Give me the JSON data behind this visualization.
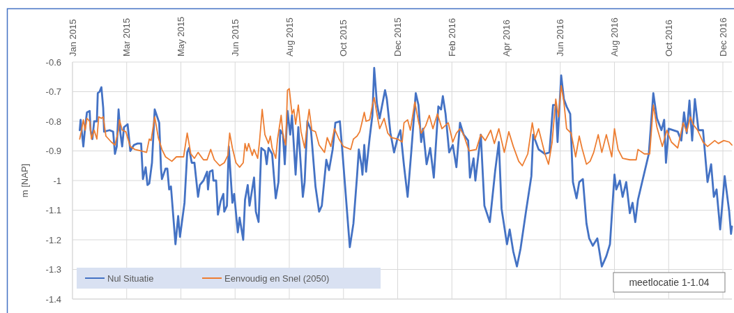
{
  "chart_data": {
    "type": "line",
    "ylabel": "m [NAP]",
    "xlim": [
      "2015-01-01",
      "2016-12-31"
    ],
    "ylim": [
      -1.4,
      -0.6
    ],
    "xticks": [
      {
        "value": "2015-01-01",
        "label": "Jan 2015"
      },
      {
        "value": "2015-03-02",
        "label": "Mar 2015"
      },
      {
        "value": "2015-05-01",
        "label": "May 2015"
      },
      {
        "value": "2015-06-30",
        "label": "Jun 2015"
      },
      {
        "value": "2015-08-29",
        "label": "Aug 2015"
      },
      {
        "value": "2015-10-28",
        "label": "Oct 2015"
      },
      {
        "value": "2015-12-27",
        "label": "Dec 2015"
      },
      {
        "value": "2016-02-25",
        "label": "Feb 2016"
      },
      {
        "value": "2016-04-25",
        "label": "Apr 2016"
      },
      {
        "value": "2016-06-24",
        "label": "Jun 2016"
      },
      {
        "value": "2016-08-23",
        "label": "Aug 2016"
      },
      {
        "value": "2016-10-22",
        "label": "Oct 2016"
      },
      {
        "value": "2016-12-21",
        "label": "Dec 2016"
      }
    ],
    "yticks": [
      -1.4,
      -1.3,
      -1.2,
      -1.1,
      -1,
      -0.9,
      -0.8,
      -0.7,
      -0.6
    ],
    "grid": true,
    "legend": "bottom left",
    "annotations": [
      "meetlocatie 1-1.04"
    ],
    "series": [
      {
        "name": "Nul Situatie",
        "color": "#4472c4",
        "x": [
          "2015-01-09",
          "2015-01-10",
          "2015-01-13",
          "2015-01-15",
          "2015-01-17",
          "2015-01-20",
          "2015-01-21",
          "2015-01-23",
          "2015-01-25",
          "2015-01-28",
          "2015-01-29",
          "2015-01-31",
          "2015-02-02",
          "2015-02-04",
          "2015-02-05",
          "2015-02-11",
          "2015-02-15",
          "2015-02-17",
          "2015-02-19",
          "2015-02-21",
          "2015-02-23",
          "2015-02-25",
          "2015-02-27",
          "2015-03-03",
          "2015-03-06",
          "2015-03-10",
          "2015-03-14",
          "2015-03-18",
          "2015-03-20",
          "2015-03-23",
          "2015-03-25",
          "2015-03-27",
          "2015-03-30",
          "2015-04-02",
          "2015-04-07",
          "2015-04-09",
          "2015-04-10",
          "2015-04-14",
          "2015-04-16",
          "2015-04-18",
          "2015-04-20",
          "2015-04-25",
          "2015-04-28",
          "2015-04-30",
          "2015-05-05",
          "2015-05-08",
          "2015-05-10",
          "2015-05-13",
          "2015-05-16",
          "2015-05-20",
          "2015-05-22",
          "2015-05-26",
          "2015-05-30",
          "2015-05-31",
          "2015-06-02",
          "2015-06-05",
          "2015-06-06",
          "2015-06-09",
          "2015-06-11",
          "2015-06-14",
          "2015-06-17",
          "2015-06-18",
          "2015-06-21",
          "2015-06-23",
          "2015-06-27",
          "2015-06-29",
          "2015-07-03",
          "2015-07-05",
          "2015-07-09",
          "2015-07-11",
          "2015-07-14",
          "2015-07-16",
          "2015-07-21",
          "2015-07-23",
          "2015-07-26",
          "2015-07-29",
          "2015-08-02",
          "2015-08-04",
          "2015-08-06",
          "2015-08-10",
          "2015-08-14",
          "2015-08-17",
          "2015-08-19",
          "2015-08-22",
          "2015-08-24",
          "2015-08-27",
          "2015-08-30",
          "2015-09-01",
          "2015-09-05",
          "2015-09-08",
          "2015-09-13",
          "2015-09-15",
          "2015-09-18",
          "2015-09-22",
          "2015-09-27",
          "2015-10-01",
          "2015-10-04",
          "2015-10-09",
          "2015-10-12",
          "2015-10-16",
          "2015-10-19",
          "2015-10-24",
          "2015-10-27",
          "2015-11-04",
          "2015-11-08",
          "2015-11-12",
          "2015-11-14",
          "2015-11-17",
          "2015-11-18",
          "2015-11-20",
          "2015-11-22",
          "2015-11-26",
          "2015-11-29",
          "2015-12-01",
          "2015-12-04",
          "2015-12-07",
          "2015-12-13",
          "2015-12-15",
          "2015-12-19",
          "2015-12-23",
          "2015-12-27",
          "2015-12-30",
          "2016-01-03",
          "2016-01-07",
          "2016-01-11",
          "2016-01-16",
          "2016-01-19",
          "2016-01-22",
          "2016-01-24",
          "2016-01-28",
          "2016-02-01",
          "2016-02-05",
          "2016-02-10",
          "2016-02-13",
          "2016-02-15",
          "2016-02-18",
          "2016-02-22",
          "2016-02-26",
          "2016-03-01",
          "2016-03-05",
          "2016-03-09",
          "2016-03-14",
          "2016-03-16",
          "2016-03-20",
          "2016-03-22",
          "2016-03-28",
          "2016-04-01",
          "2016-04-07",
          "2016-04-13",
          "2016-04-17",
          "2016-04-20",
          "2016-04-26",
          "2016-04-29",
          "2016-05-03",
          "2016-05-07",
          "2016-05-11",
          "2016-05-17",
          "2016-05-23",
          "2016-05-25",
          "2016-05-31",
          "2016-06-07",
          "2016-06-12",
          "2016-06-16",
          "2016-06-19",
          "2016-06-21",
          "2016-06-25",
          "2016-06-28",
          "2016-07-01",
          "2016-07-05",
          "2016-07-08",
          "2016-07-12",
          "2016-07-15",
          "2016-07-19",
          "2016-07-23",
          "2016-07-26",
          "2016-07-30",
          "2016-08-04",
          "2016-08-09",
          "2016-08-14",
          "2016-08-18",
          "2016-08-23",
          "2016-08-25",
          "2016-08-29",
          "2016-09-01",
          "2016-09-05",
          "2016-09-09",
          "2016-09-12",
          "2016-09-15",
          "2016-09-18",
          "2016-09-23",
          "2016-09-30",
          "2016-10-05",
          "2016-10-09",
          "2016-10-14",
          "2016-10-17",
          "2016-10-19",
          "2016-10-22",
          "2016-11-01",
          "2016-11-05",
          "2016-11-08",
          "2016-11-11",
          "2016-11-14",
          "2016-11-17",
          "2016-11-20",
          "2016-11-24",
          "2016-11-29",
          "2016-12-04",
          "2016-12-08",
          "2016-12-11",
          "2016-12-14",
          "2016-12-18",
          "2016-12-23",
          "2016-12-28",
          "2016-12-30",
          "2016-12-31"
        ],
        "values": [
          -0.83,
          -0.795,
          -0.885,
          -0.82,
          -0.77,
          -0.765,
          -0.83,
          -0.86,
          -0.8,
          -0.8,
          -0.705,
          -0.7,
          -0.685,
          -0.755,
          -0.835,
          -0.83,
          -0.835,
          -0.91,
          -0.885,
          -0.76,
          -0.84,
          -0.885,
          -0.82,
          -0.81,
          -0.9,
          -0.88,
          -0.875,
          -0.875,
          -0.995,
          -0.955,
          -1.015,
          -1.01,
          -0.94,
          -0.76,
          -0.805,
          -0.96,
          -0.995,
          -0.96,
          -0.96,
          -1.03,
          -1.02,
          -1.215,
          -1.12,
          -1.19,
          -1.075,
          -0.905,
          -0.89,
          -0.94,
          -0.94,
          -1.055,
          -1.015,
          -1,
          -0.97,
          -1.03,
          -0.97,
          -0.965,
          -1,
          -1,
          -1.115,
          -1.07,
          -1.045,
          -1.105,
          -1.085,
          -0.885,
          -1.075,
          -1.045,
          -1.175,
          -1.125,
          -1.2,
          -1.065,
          -1.015,
          -1.085,
          -0.99,
          -1.105,
          -1.14,
          -0.89,
          -0.9,
          -0.945,
          -0.89,
          -0.91,
          -1.06,
          -1.005,
          -0.83,
          -0.845,
          -0.945,
          -0.765,
          -0.845,
          -0.78,
          -0.98,
          -0.82,
          -1.055,
          -1.005,
          -0.8,
          -0.83,
          -1.02,
          -1.105,
          -1.085,
          -0.93,
          -0.965,
          -0.895,
          -0.805,
          -0.8,
          -0.91,
          -1.225,
          -1.145,
          -0.985,
          -0.895,
          -0.95,
          -0.98,
          -0.88,
          -0.97,
          -0.855,
          -0.78,
          -0.62,
          -0.74,
          -0.79,
          -0.695,
          -0.725,
          -0.84,
          -0.905,
          -0.855,
          -0.83,
          -0.95,
          -1.055,
          -0.905,
          -0.705,
          -0.745,
          -0.87,
          -0.825,
          -0.945,
          -0.89,
          -0.99,
          -0.75,
          -0.76,
          -0.715,
          -0.775,
          -0.905,
          -0.88,
          -0.955,
          -0.805,
          -0.845,
          -0.865,
          -0.99,
          -0.925,
          -1,
          -0.845,
          -1.085,
          -1.14,
          -0.965,
          -0.87,
          -1.095,
          -1.215,
          -1.165,
          -1.24,
          -1.29,
          -1.23,
          -1.105,
          -0.985,
          -0.845,
          -0.895,
          -0.91,
          -0.905,
          -0.745,
          -0.745,
          -0.87,
          -0.645,
          -0.725,
          -0.75,
          -0.775,
          -1.005,
          -1.06,
          -1.005,
          -0.995,
          -1.145,
          -1.195,
          -1.22,
          -1.195,
          -1.29,
          -1.255,
          -1.215,
          -0.98,
          -1.03,
          -1,
          -1.055,
          -1.005,
          -1.11,
          -1.075,
          -1.14,
          -1.065,
          -1,
          -0.91,
          -0.705,
          -0.79,
          -0.83,
          -0.795,
          -0.94,
          -0.825,
          -0.835,
          -0.865,
          -0.77,
          -0.84,
          -0.73,
          -0.865,
          -0.725,
          -0.83,
          -0.83,
          -1.005,
          -0.945,
          -1.055,
          -1.03,
          -1.165,
          -0.985,
          -1.105,
          -1.18,
          -1.155
        ]
      },
      {
        "name": "Eenvoudig en Snel (2050)",
        "color": "#ed7d31",
        "x": [
          "2015-01-09",
          "2015-01-11",
          "2015-01-13",
          "2015-01-15",
          "2015-01-17",
          "2015-01-20",
          "2015-01-22",
          "2015-01-25",
          "2015-01-28",
          "2015-01-30",
          "2015-02-02",
          "2015-02-04",
          "2015-02-07",
          "2015-02-13",
          "2015-02-17",
          "2015-02-21",
          "2015-02-22",
          "2015-02-25",
          "2015-03-01",
          "2015-03-06",
          "2015-03-11",
          "2015-03-18",
          "2015-03-24",
          "2015-03-27",
          "2015-03-29",
          "2015-04-02",
          "2015-04-06",
          "2015-04-10",
          "2015-04-14",
          "2015-04-21",
          "2015-04-26",
          "2015-05-04",
          "2015-05-08",
          "2015-05-12",
          "2015-05-16",
          "2015-05-20",
          "2015-05-26",
          "2015-05-30",
          "2015-06-03",
          "2015-06-07",
          "2015-06-13",
          "2015-06-18",
          "2015-06-22",
          "2015-06-24",
          "2015-06-27",
          "2015-07-01",
          "2015-07-05",
          "2015-07-09",
          "2015-07-11",
          "2015-07-13",
          "2015-07-15",
          "2015-07-19",
          "2015-07-21",
          "2015-07-25",
          "2015-07-27",
          "2015-07-30",
          "2015-08-02",
          "2015-08-06",
          "2015-08-08",
          "2015-08-10",
          "2015-08-14",
          "2015-08-16",
          "2015-08-20",
          "2015-08-22",
          "2015-08-25",
          "2015-08-27",
          "2015-08-29",
          "2015-09-01",
          "2015-09-03",
          "2015-09-05",
          "2015-09-08",
          "2015-09-11",
          "2015-09-15",
          "2015-09-18",
          "2015-09-20",
          "2015-09-23",
          "2015-09-27",
          "2015-10-01",
          "2015-10-07",
          "2015-10-10",
          "2015-10-14",
          "2015-10-18",
          "2015-10-23",
          "2015-10-28",
          "2015-11-05",
          "2015-11-08",
          "2015-11-12",
          "2015-11-15",
          "2015-11-17",
          "2015-11-20",
          "2015-11-22",
          "2015-11-26",
          "2015-11-29",
          "2015-12-01",
          "2015-12-04",
          "2015-12-07",
          "2015-12-12",
          "2015-12-16",
          "2015-12-20",
          "2015-12-27",
          "2016-01-01",
          "2016-01-03",
          "2016-01-07",
          "2016-01-10",
          "2016-01-15",
          "2016-01-19",
          "2016-01-22",
          "2016-01-27",
          "2016-01-31",
          "2016-02-04",
          "2016-02-09",
          "2016-02-14",
          "2016-02-21",
          "2016-02-26",
          "2016-03-01",
          "2016-03-05",
          "2016-03-09",
          "2016-03-15",
          "2016-03-23",
          "2016-03-28",
          "2016-04-02",
          "2016-04-08",
          "2016-04-12",
          "2016-04-17",
          "2016-04-23",
          "2016-04-28",
          "2016-05-03",
          "2016-05-09",
          "2016-05-13",
          "2016-05-19",
          "2016-05-24",
          "2016-05-27",
          "2016-05-31",
          "2016-06-07",
          "2016-06-11",
          "2016-06-15",
          "2016-06-19",
          "2016-06-22",
          "2016-06-25",
          "2016-06-28",
          "2016-07-01",
          "2016-07-06",
          "2016-07-11",
          "2016-07-15",
          "2016-07-18",
          "2016-07-23",
          "2016-07-27",
          "2016-07-31",
          "2016-08-05",
          "2016-08-09",
          "2016-08-14",
          "2016-08-20",
          "2016-08-23",
          "2016-08-27",
          "2016-09-01",
          "2016-09-09",
          "2016-09-16",
          "2016-09-18",
          "2016-09-25",
          "2016-10-01",
          "2016-10-05",
          "2016-10-09",
          "2016-10-15",
          "2016-10-20",
          "2016-10-25",
          "2016-11-01",
          "2016-11-07",
          "2016-11-11",
          "2016-11-15",
          "2016-11-18",
          "2016-11-23",
          "2016-11-29",
          "2016-12-04",
          "2016-12-12",
          "2016-12-16",
          "2016-12-22",
          "2016-12-28",
          "2016-12-31"
        ],
        "values": [
          -0.86,
          -0.83,
          -0.795,
          -0.83,
          -0.79,
          -0.8,
          -0.86,
          -0.83,
          -0.86,
          -0.785,
          -0.79,
          -0.785,
          -0.85,
          -0.87,
          -0.88,
          -0.83,
          -0.795,
          -0.83,
          -0.835,
          -0.885,
          -0.895,
          -0.9,
          -0.905,
          -0.86,
          -0.865,
          -0.785,
          -0.855,
          -0.895,
          -0.92,
          -0.935,
          -0.92,
          -0.92,
          -0.84,
          -0.91,
          -0.925,
          -0.905,
          -0.93,
          -0.93,
          -0.895,
          -0.93,
          -0.95,
          -0.94,
          -0.915,
          -0.84,
          -0.89,
          -0.94,
          -0.955,
          -0.94,
          -0.875,
          -0.9,
          -0.875,
          -0.915,
          -0.895,
          -0.925,
          -0.87,
          -0.76,
          -0.845,
          -0.875,
          -0.85,
          -0.89,
          -0.925,
          -0.86,
          -0.78,
          -0.845,
          -0.88,
          -0.695,
          -0.69,
          -0.775,
          -0.76,
          -0.81,
          -0.745,
          -0.835,
          -0.89,
          -0.805,
          -0.76,
          -0.83,
          -0.835,
          -0.88,
          -0.905,
          -0.855,
          -0.885,
          -0.825,
          -0.86,
          -0.885,
          -0.895,
          -0.86,
          -0.85,
          -0.835,
          -0.81,
          -0.77,
          -0.8,
          -0.795,
          -0.745,
          -0.72,
          -0.775,
          -0.825,
          -0.79,
          -0.84,
          -0.855,
          -0.86,
          -0.87,
          -0.805,
          -0.795,
          -0.83,
          -0.735,
          -0.8,
          -0.84,
          -0.815,
          -0.78,
          -0.825,
          -0.775,
          -0.825,
          -0.805,
          -0.87,
          -0.84,
          -0.825,
          -0.845,
          -0.9,
          -0.895,
          -0.845,
          -0.865,
          -0.83,
          -0.875,
          -0.825,
          -0.905,
          -0.835,
          -0.885,
          -0.935,
          -0.95,
          -0.91,
          -0.805,
          -0.86,
          -0.825,
          -0.91,
          -0.945,
          -0.87,
          -0.725,
          -0.785,
          -0.68,
          -0.735,
          -0.825,
          -0.84,
          -0.92,
          -0.85,
          -0.89,
          -0.945,
          -0.935,
          -0.905,
          -0.845,
          -0.905,
          -0.845,
          -0.92,
          -0.825,
          -0.895,
          -0.925,
          -0.93,
          -0.93,
          -0.895,
          -0.91,
          -0.91,
          -0.745,
          -0.82,
          -0.885,
          -0.83,
          -0.87,
          -0.89,
          -0.805,
          -0.835,
          -0.785,
          -0.81,
          -0.83,
          -0.87,
          -0.885,
          -0.865,
          -0.875,
          -0.865,
          -0.87,
          -0.88
        ]
      }
    ]
  }
}
